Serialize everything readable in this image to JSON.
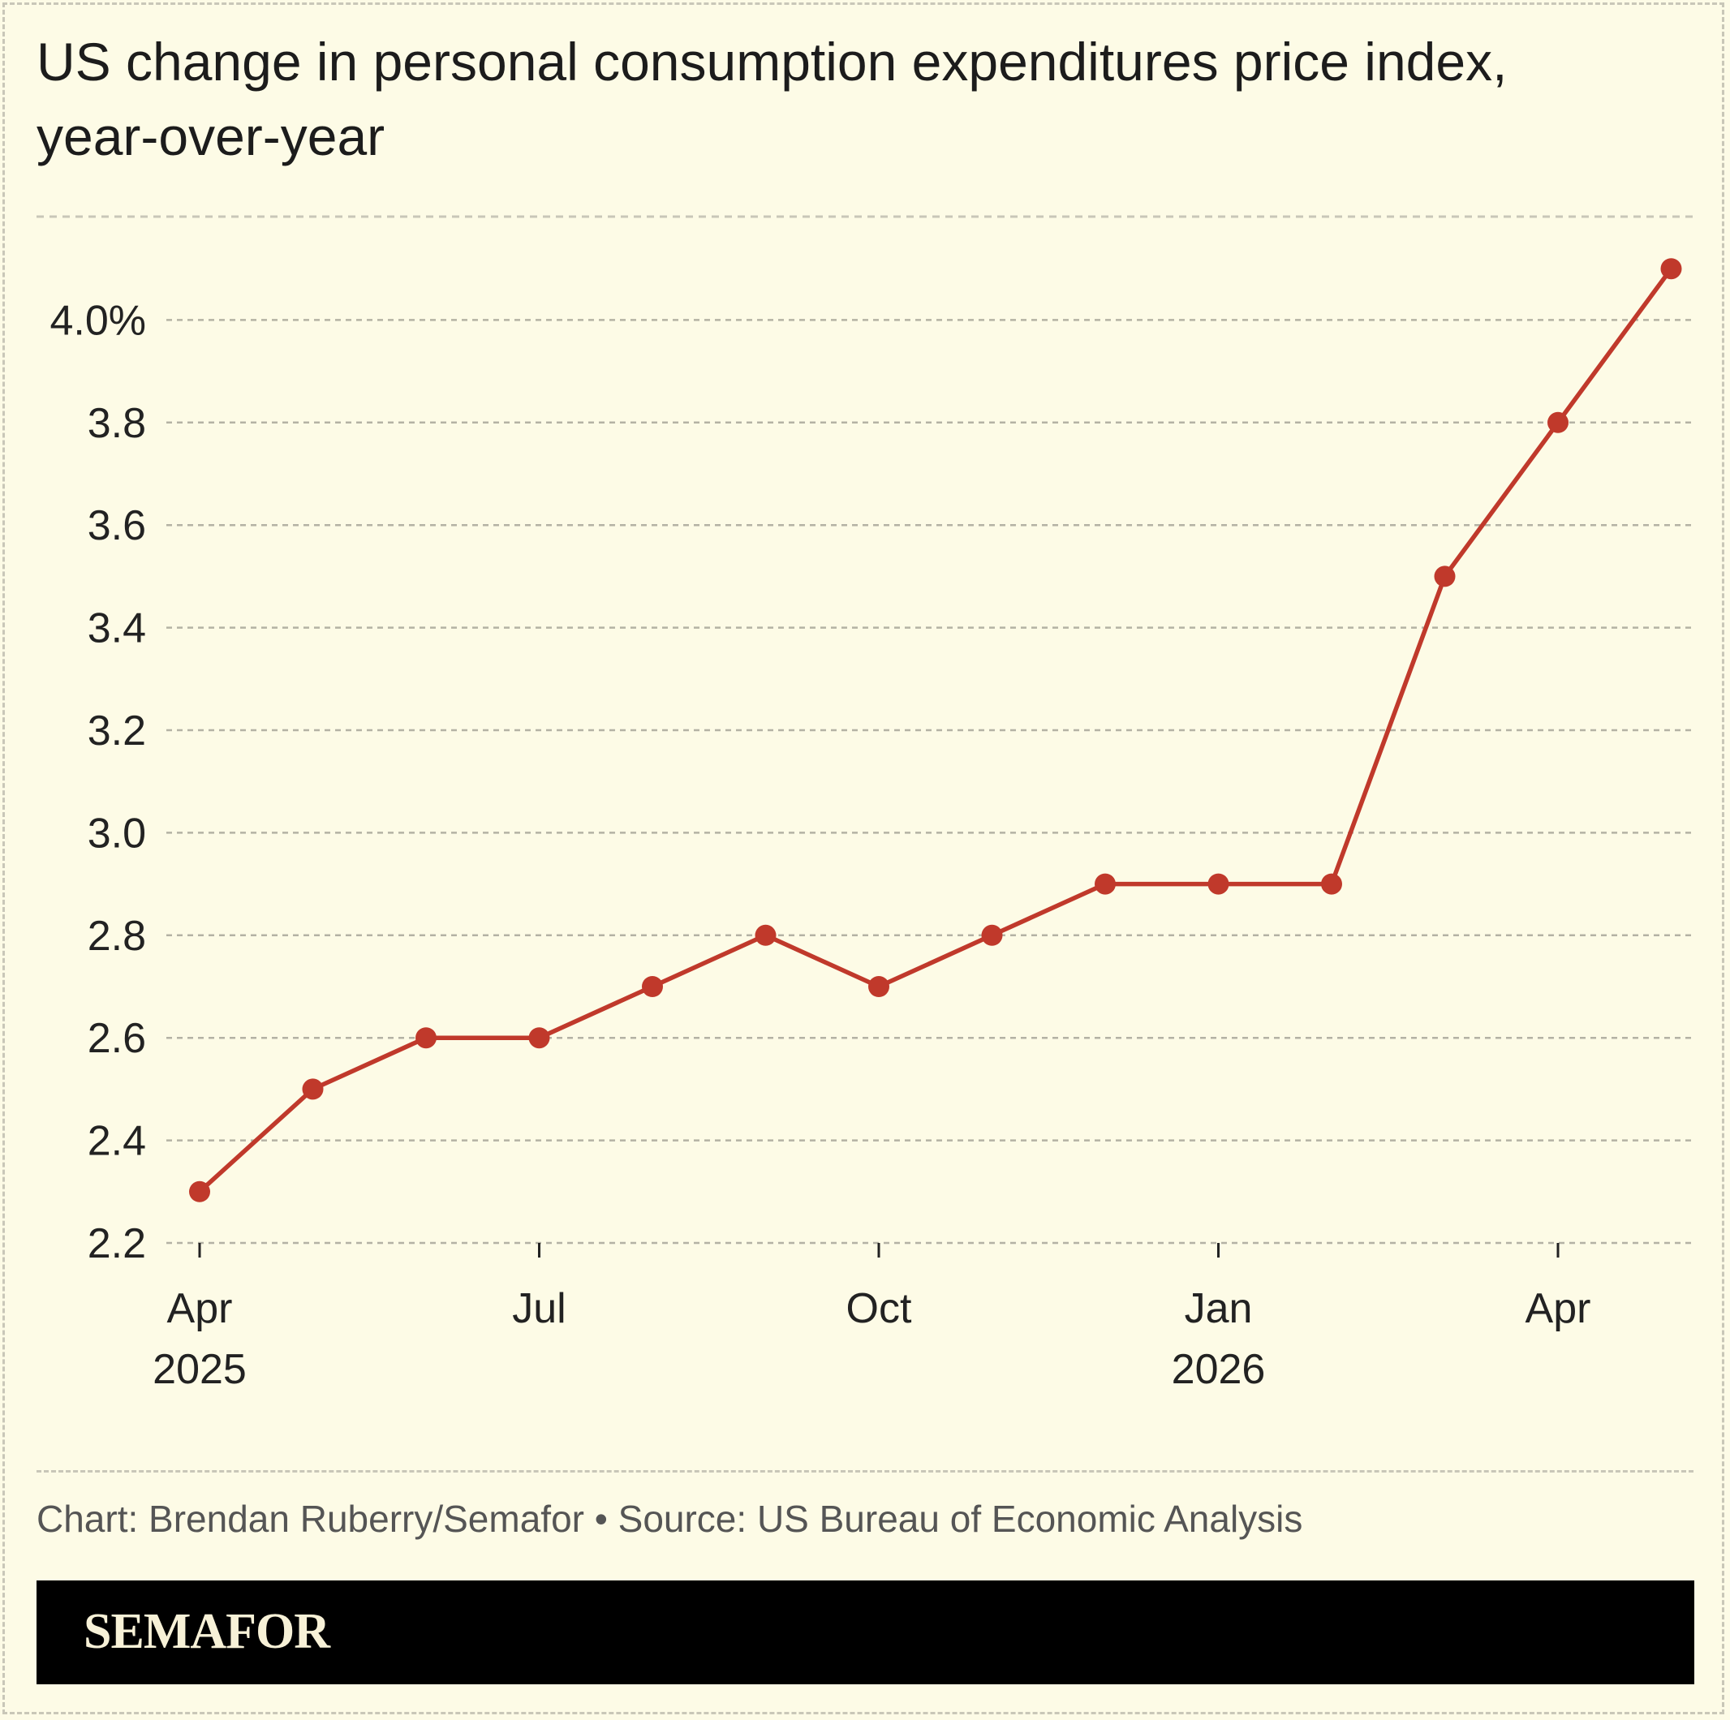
{
  "chart_data": {
    "type": "line",
    "title": "US change in personal consumption expenditures price index, year-over-year",
    "x": [
      "2025-04",
      "2025-05",
      "2025-06",
      "2025-07",
      "2025-08",
      "2025-09",
      "2025-10",
      "2025-11",
      "2025-12",
      "2026-01",
      "2026-02",
      "2026-03",
      "2026-04",
      "2026-05"
    ],
    "series": [
      {
        "values": [
          2.3,
          2.5,
          2.6,
          2.6,
          2.7,
          2.8,
          2.7,
          2.8,
          2.9,
          2.9,
          2.9,
          3.5,
          3.8,
          4.1
        ]
      }
    ],
    "ylim": [
      2.2,
      4.2
    ],
    "yticks": [
      2.2,
      2.4,
      2.6,
      2.8,
      3.0,
      3.2,
      3.4,
      3.6,
      3.8,
      4.0
    ],
    "ytick_labels": [
      "2.2",
      "2.4",
      "2.6",
      "2.8",
      "3.0",
      "3.2",
      "3.4",
      "3.6",
      "3.8",
      "4.0%"
    ],
    "xticks": [
      {
        "x": "2025-04",
        "label": "Apr",
        "sublabel": "2025"
      },
      {
        "x": "2025-07",
        "label": "Jul",
        "sublabel": ""
      },
      {
        "x": "2025-10",
        "label": "Oct",
        "sublabel": ""
      },
      {
        "x": "2026-01",
        "label": "Jan",
        "sublabel": "2026"
      },
      {
        "x": "2026-04",
        "label": "Apr",
        "sublabel": ""
      }
    ],
    "grid": true,
    "line_color": "#c0392b"
  },
  "footer": {
    "credit": "Chart: Brendan Ruberry/Semafor • Source: US Bureau of Economic Analysis",
    "brand": "SEMAFOR"
  }
}
